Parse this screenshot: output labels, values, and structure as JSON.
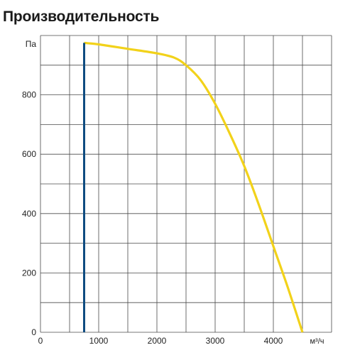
{
  "title": "Производительность",
  "chart_data": {
    "type": "line",
    "title": "Производительность",
    "xlabel": "м³/ч",
    "ylabel": "Па",
    "xlim": [
      0,
      5000
    ],
    "ylim": [
      0,
      1000
    ],
    "grid": true,
    "x_ticks": [
      0,
      1000,
      2000,
      3000,
      4000
    ],
    "y_ticks": [
      0,
      200,
      400,
      600,
      800
    ],
    "series": [
      {
        "color": "#f2d21a",
        "x": [
          750,
          1000,
          1500,
          2000,
          2300,
          2500,
          2750,
          3000,
          3250,
          3500,
          3750,
          4000,
          4250,
          4500
        ],
        "y": [
          975,
          970,
          955,
          940,
          925,
          900,
          850,
          770,
          670,
          560,
          430,
          290,
          150,
          0
        ]
      },
      {
        "color": "#0f4c81",
        "x": [
          750,
          750
        ],
        "y": [
          0,
          975
        ]
      }
    ]
  }
}
